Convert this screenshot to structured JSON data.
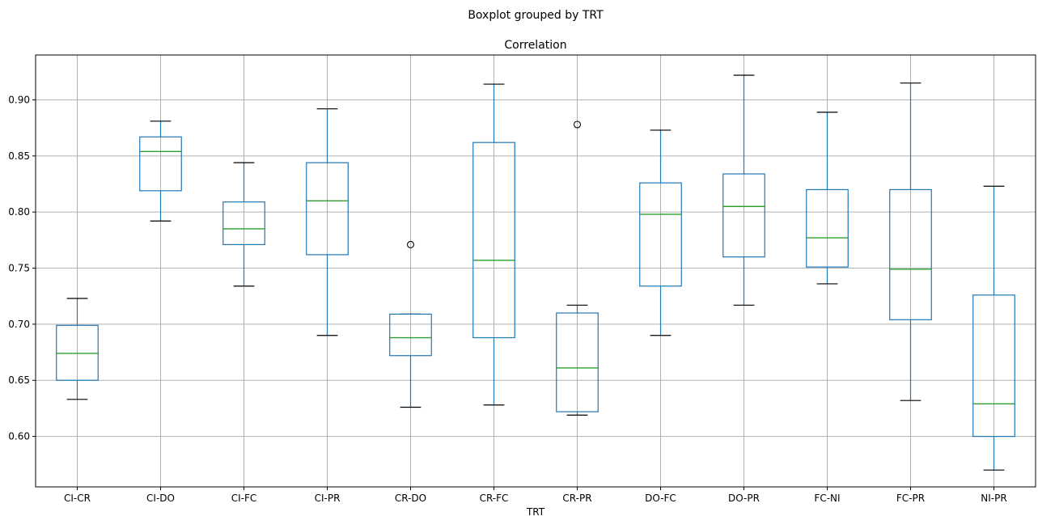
{
  "suptitle": "Boxplot grouped by TRT",
  "chart_data": {
    "type": "boxplot",
    "title": "Correlation",
    "xlabel": "TRT",
    "ylabel": "",
    "ylim": [
      0.555,
      0.94
    ],
    "yticks": [
      0.6,
      0.65,
      0.7,
      0.75,
      0.8,
      0.85,
      0.9
    ],
    "ytick_labels": [
      "0.60",
      "0.65",
      "0.70",
      "0.75",
      "0.80",
      "0.85",
      "0.90"
    ],
    "grid": true,
    "colors": {
      "box": "#1f77b4",
      "median": "#2ca02c",
      "cap": "#000000",
      "grid": "#b0b0b0"
    },
    "categories": [
      "CI-CR",
      "CI-DO",
      "CI-FC",
      "CI-PR",
      "CR-DO",
      "CR-FC",
      "CR-PR",
      "DO-FC",
      "DO-PR",
      "FC-NI",
      "FC-PR",
      "NI-PR"
    ],
    "boxes": [
      {
        "whislo": 0.633,
        "q1": 0.65,
        "med": 0.674,
        "q3": 0.699,
        "whishi": 0.723,
        "fliers": []
      },
      {
        "whislo": 0.792,
        "q1": 0.819,
        "med": 0.854,
        "q3": 0.867,
        "whishi": 0.881,
        "fliers": []
      },
      {
        "whislo": 0.734,
        "q1": 0.771,
        "med": 0.785,
        "q3": 0.809,
        "whishi": 0.844,
        "fliers": []
      },
      {
        "whislo": 0.69,
        "q1": 0.762,
        "med": 0.81,
        "q3": 0.844,
        "whishi": 0.892,
        "fliers": []
      },
      {
        "whislo": 0.626,
        "q1": 0.672,
        "med": 0.688,
        "q3": 0.709,
        "whishi": 0.709,
        "fliers": [
          0.771
        ]
      },
      {
        "whislo": 0.628,
        "q1": 0.688,
        "med": 0.757,
        "q3": 0.862,
        "whishi": 0.914,
        "fliers": []
      },
      {
        "whislo": 0.619,
        "q1": 0.622,
        "med": 0.661,
        "q3": 0.71,
        "whishi": 0.717,
        "fliers": [
          0.878
        ]
      },
      {
        "whislo": 0.69,
        "q1": 0.734,
        "med": 0.798,
        "q3": 0.826,
        "whishi": 0.873,
        "fliers": []
      },
      {
        "whislo": 0.717,
        "q1": 0.76,
        "med": 0.805,
        "q3": 0.834,
        "whishi": 0.922,
        "fliers": []
      },
      {
        "whislo": 0.736,
        "q1": 0.751,
        "med": 0.777,
        "q3": 0.82,
        "whishi": 0.889,
        "fliers": []
      },
      {
        "whislo": 0.632,
        "q1": 0.704,
        "med": 0.749,
        "q3": 0.82,
        "whishi": 0.915,
        "fliers": []
      },
      {
        "whislo": 0.57,
        "q1": 0.6,
        "med": 0.629,
        "q3": 0.726,
        "whishi": 0.823,
        "fliers": []
      }
    ]
  }
}
